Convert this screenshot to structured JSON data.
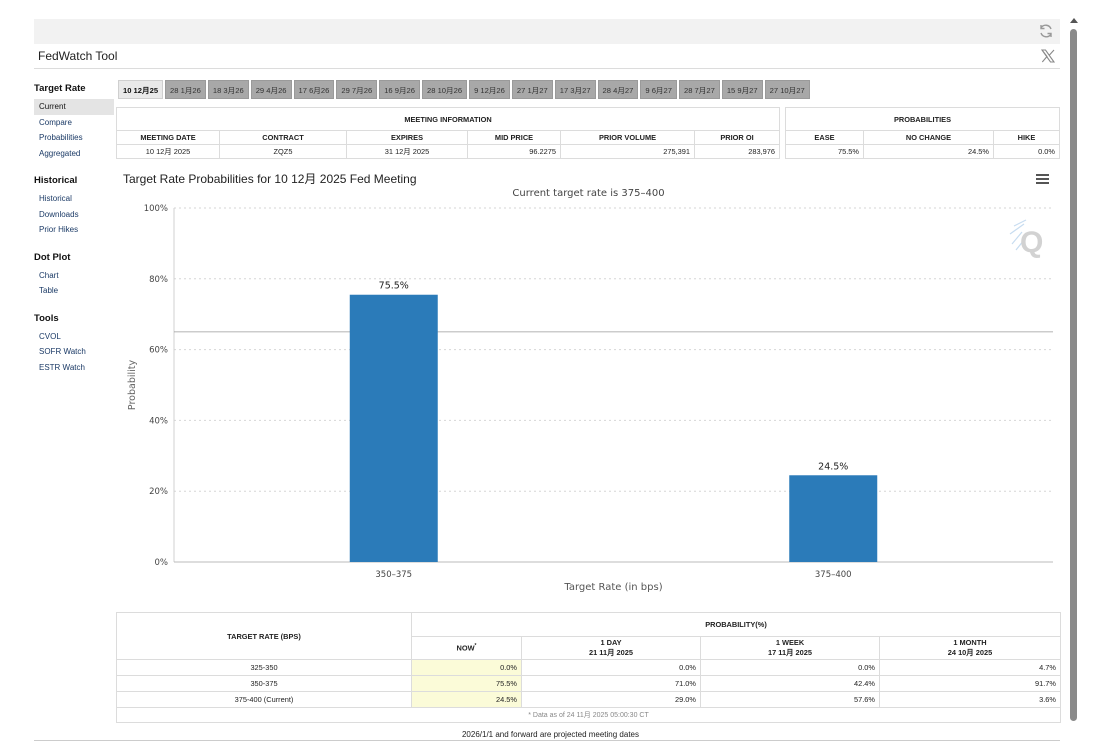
{
  "app": {
    "title": "FedWatch Tool"
  },
  "sidebar": [
    {
      "heading": "Target Rate",
      "items": [
        {
          "label": "Current",
          "active": true
        },
        {
          "label": "Compare"
        },
        {
          "label": "Probabilities"
        },
        {
          "label": "Aggregated"
        }
      ]
    },
    {
      "heading": "Historical",
      "items": [
        {
          "label": "Historical"
        },
        {
          "label": "Downloads"
        },
        {
          "label": "Prior Hikes"
        }
      ]
    },
    {
      "heading": "Dot Plot",
      "items": [
        {
          "label": "Chart"
        },
        {
          "label": "Table"
        }
      ]
    },
    {
      "heading": "Tools",
      "items": [
        {
          "label": "CVOL"
        },
        {
          "label": "SOFR Watch"
        },
        {
          "label": "ESTR Watch"
        }
      ]
    }
  ],
  "tabs": [
    "10 12月25",
    "28 1月26",
    "18 3月26",
    "29 4月26",
    "17 6月26",
    "29 7月26",
    "16 9月26",
    "28 10月26",
    "9 12月26",
    "27 1月27",
    "17 3月27",
    "28 4月27",
    "9 6月27",
    "28 7月27",
    "15 9月27",
    "27 10月27"
  ],
  "active_tab": 0,
  "meeting_info": {
    "group_label": "MEETING INFORMATION",
    "headers": [
      "MEETING DATE",
      "CONTRACT",
      "EXPIRES",
      "MID PRICE",
      "PRIOR VOLUME",
      "PRIOR OI"
    ],
    "row": [
      "10 12月 2025",
      "ZQZ5",
      "31 12月 2025",
      "96.2275",
      "275,391",
      "283,976"
    ]
  },
  "probabilities": {
    "group_label": "PROBABILITIES",
    "headers": [
      "EASE",
      "NO CHANGE",
      "HIKE"
    ],
    "row": [
      "75.5%",
      "24.5%",
      "0.0%"
    ]
  },
  "chart": {
    "title": "Target Rate Probabilities for 10 12月 2025 Fed Meeting",
    "subtitle": "Current target rate is 375–400"
  },
  "chart_data": {
    "type": "bar",
    "categories": [
      "350–375",
      "375–400"
    ],
    "values": [
      75.5,
      24.5
    ],
    "data_labels": [
      "75.5%",
      "24.5%"
    ],
    "xlabel": "Target Rate (in bps)",
    "ylabel": "Probability",
    "ylim": [
      0,
      100
    ],
    "yticks": [
      "0%",
      "20%",
      "40%",
      "60%",
      "80%",
      "100%"
    ],
    "reference_line": 65,
    "bar_color": "#2b7bb9",
    "grid": true
  },
  "prob_table": {
    "target_header": "TARGET RATE (BPS)",
    "group_header": "PROBABILITY(%)",
    "now": "NOW",
    "now_mark": "*",
    "cols": [
      {
        "l1": "1 DAY",
        "l2": "21 11月 2025"
      },
      {
        "l1": "1 WEEK",
        "l2": "17 11月 2025"
      },
      {
        "l1": "1 MONTH",
        "l2": "24 10月 2025"
      }
    ],
    "rows": [
      [
        "325-350",
        "0.0%",
        "0.0%",
        "0.0%",
        "4.7%"
      ],
      [
        "350-375",
        "75.5%",
        "71.0%",
        "42.4%",
        "91.7%"
      ],
      [
        "375-400 (Current)",
        "24.5%",
        "29.0%",
        "57.6%",
        "3.6%"
      ]
    ],
    "note": "* Data as of 24 11月 2025 05:00:30 CT"
  },
  "footer": "2026/1/1 and forward are projected meeting dates",
  "icons": {
    "refresh": "refresh-icon",
    "close": "x-logo-icon",
    "menu": "hamburger-menu-icon",
    "watermark": "q-logo-icon"
  }
}
